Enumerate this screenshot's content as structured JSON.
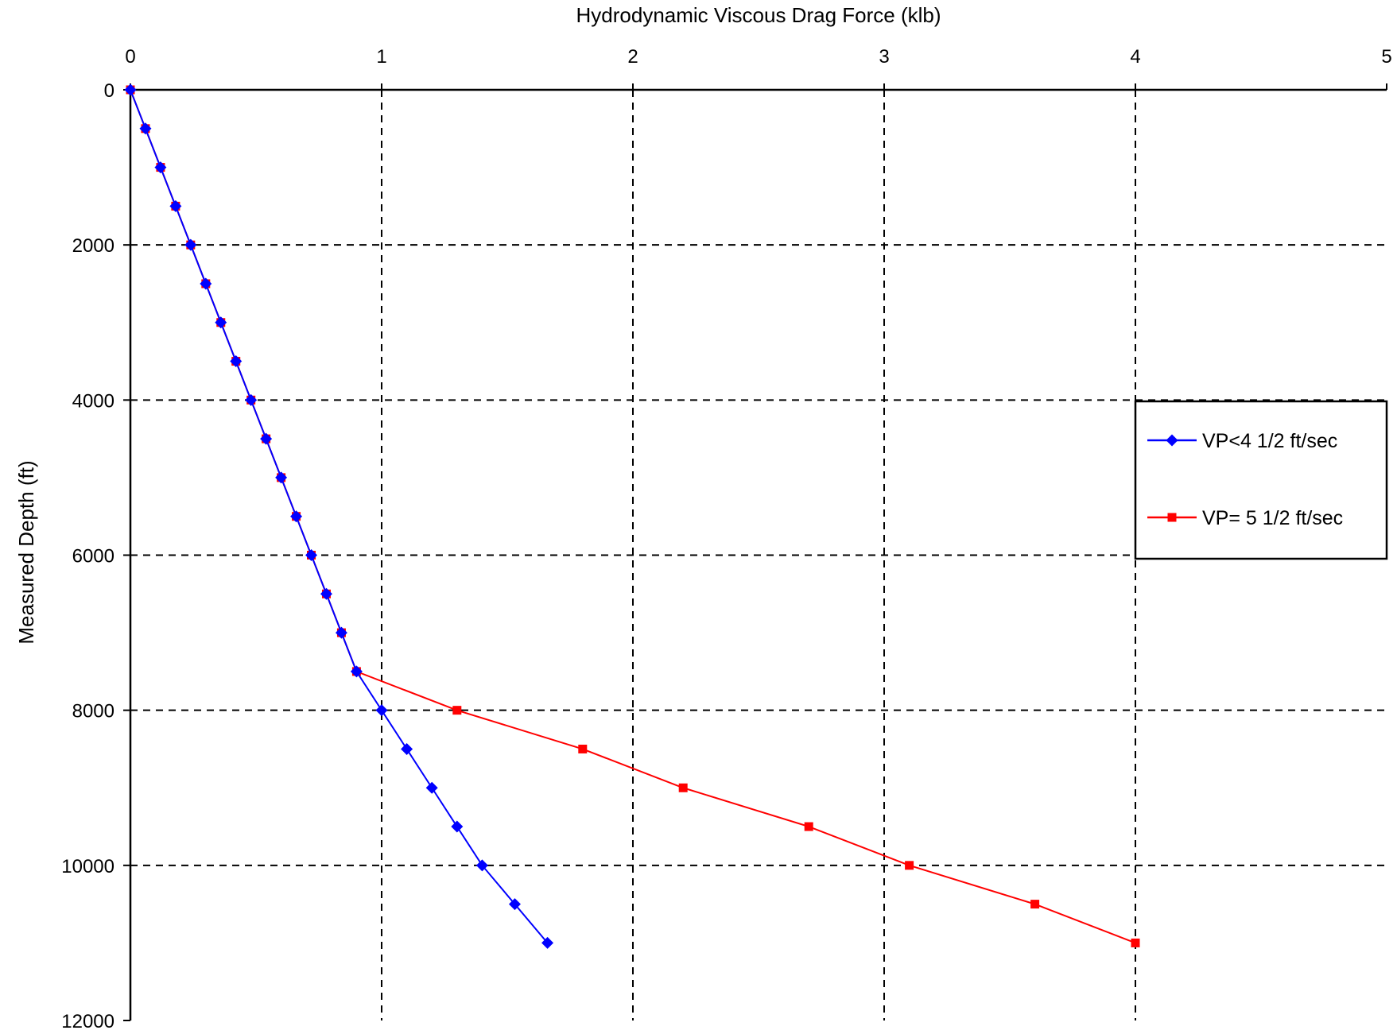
{
  "chart_data": {
    "type": "line",
    "title": "Hydrodynamic Viscous Drag Force (klb)",
    "xlabel": "Hydrodynamic Viscous Drag Force (klb)",
    "ylabel": "Measured Depth (ft)",
    "xlim": [
      0,
      5
    ],
    "ylim": [
      0,
      12000
    ],
    "y_inverted": true,
    "x_axis_position": "top",
    "x_ticks": [
      "0",
      "1",
      "2",
      "3",
      "4",
      "5"
    ],
    "y_ticks": [
      "0",
      "2000",
      "4000",
      "6000",
      "8000",
      "10000",
      "12000"
    ],
    "grid": true,
    "grid_style": "dashed",
    "legend_position": "right",
    "series": [
      {
        "name": "VP<4 1/2  ft/sec",
        "color": "#0000ff",
        "marker": "diamond",
        "x": [
          0,
          0.06,
          0.12,
          0.18,
          0.24,
          0.3,
          0.36,
          0.42,
          0.48,
          0.54,
          0.6,
          0.66,
          0.72,
          0.78,
          0.84,
          0.9,
          1.0,
          1.1,
          1.2,
          1.3,
          1.4,
          1.53,
          1.66
        ],
        "y": [
          0,
          500,
          1000,
          1500,
          2000,
          2500,
          3000,
          3500,
          4000,
          4500,
          5000,
          5500,
          6000,
          6500,
          7000,
          7500,
          8000,
          8500,
          9000,
          9500,
          10000,
          10500,
          11000
        ]
      },
      {
        "name": "VP= 5 1/2  ft/sec",
        "color": "#ff0000",
        "marker": "square",
        "x": [
          0,
          0.06,
          0.12,
          0.18,
          0.24,
          0.3,
          0.36,
          0.42,
          0.48,
          0.54,
          0.6,
          0.66,
          0.72,
          0.78,
          0.84,
          0.9,
          1.3,
          1.8,
          2.2,
          2.7,
          3.1,
          3.6,
          4.0
        ],
        "y": [
          0,
          500,
          1000,
          1500,
          2000,
          2500,
          3000,
          3500,
          4000,
          4500,
          5000,
          5500,
          6000,
          6500,
          7000,
          7500,
          8000,
          8500,
          9000,
          9500,
          10000,
          10500,
          11000
        ]
      }
    ]
  }
}
